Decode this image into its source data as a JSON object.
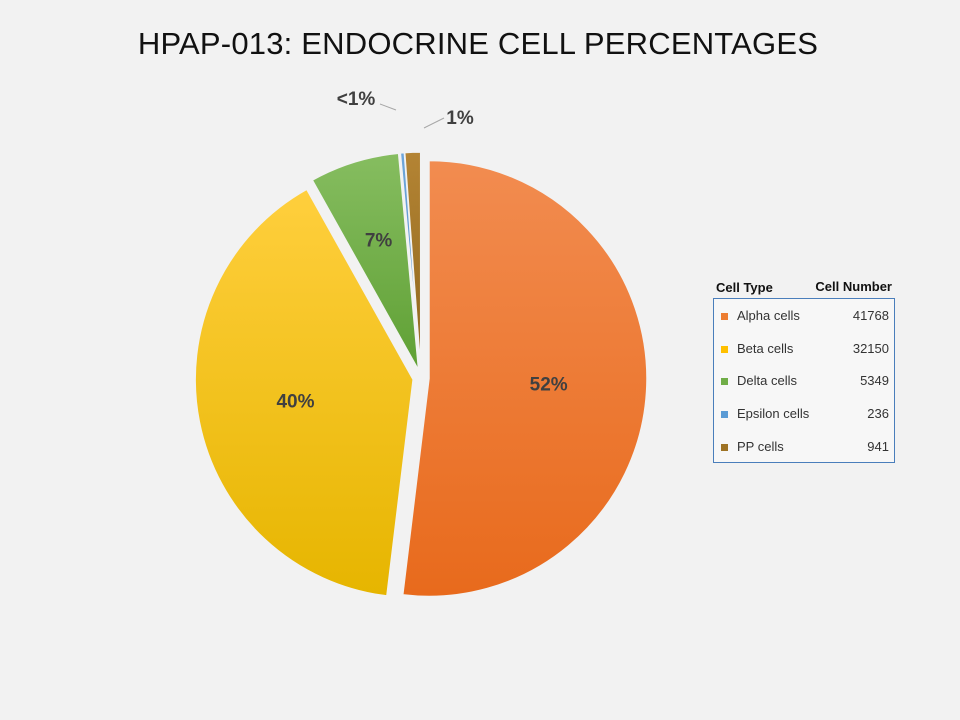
{
  "title": "HPAP-013: ENDOCRINE CELL PERCENTAGES",
  "chart_data": {
    "type": "pie",
    "title": "HPAP-013: ENDOCRINE CELL PERCENTAGES",
    "slices": [
      {
        "name": "Alpha cells",
        "value": 41768,
        "label": "52%",
        "color": "#ed7d31"
      },
      {
        "name": "Beta cells",
        "value": 32150,
        "label": "40%",
        "color": "#ffc000"
      },
      {
        "name": "Delta cells",
        "value": 5349,
        "label": "7%",
        "color": "#70ad47"
      },
      {
        "name": "Epsilon cells",
        "value": 236,
        "label": "<1%",
        "color": "#5b9bd5"
      },
      {
        "name": "PP cells",
        "value": 941,
        "label": "1%",
        "color": "#9e7324"
      }
    ],
    "exploded": true,
    "legend_placement": "right"
  },
  "legend": {
    "header_type": "Cell Type",
    "header_number": "Cell Number",
    "rows": [
      {
        "label": "Alpha cells",
        "number": "41768",
        "color": "#ed7d31"
      },
      {
        "label": "Beta cells",
        "number": "32150",
        "color": "#ffc000"
      },
      {
        "label": "Delta cells",
        "number": "5349",
        "color": "#70ad47"
      },
      {
        "label": "Epsilon cells",
        "number": "236",
        "color": "#5b9bd5"
      },
      {
        "label": "PP cells",
        "number": "941",
        "color": "#9e7324"
      }
    ]
  }
}
